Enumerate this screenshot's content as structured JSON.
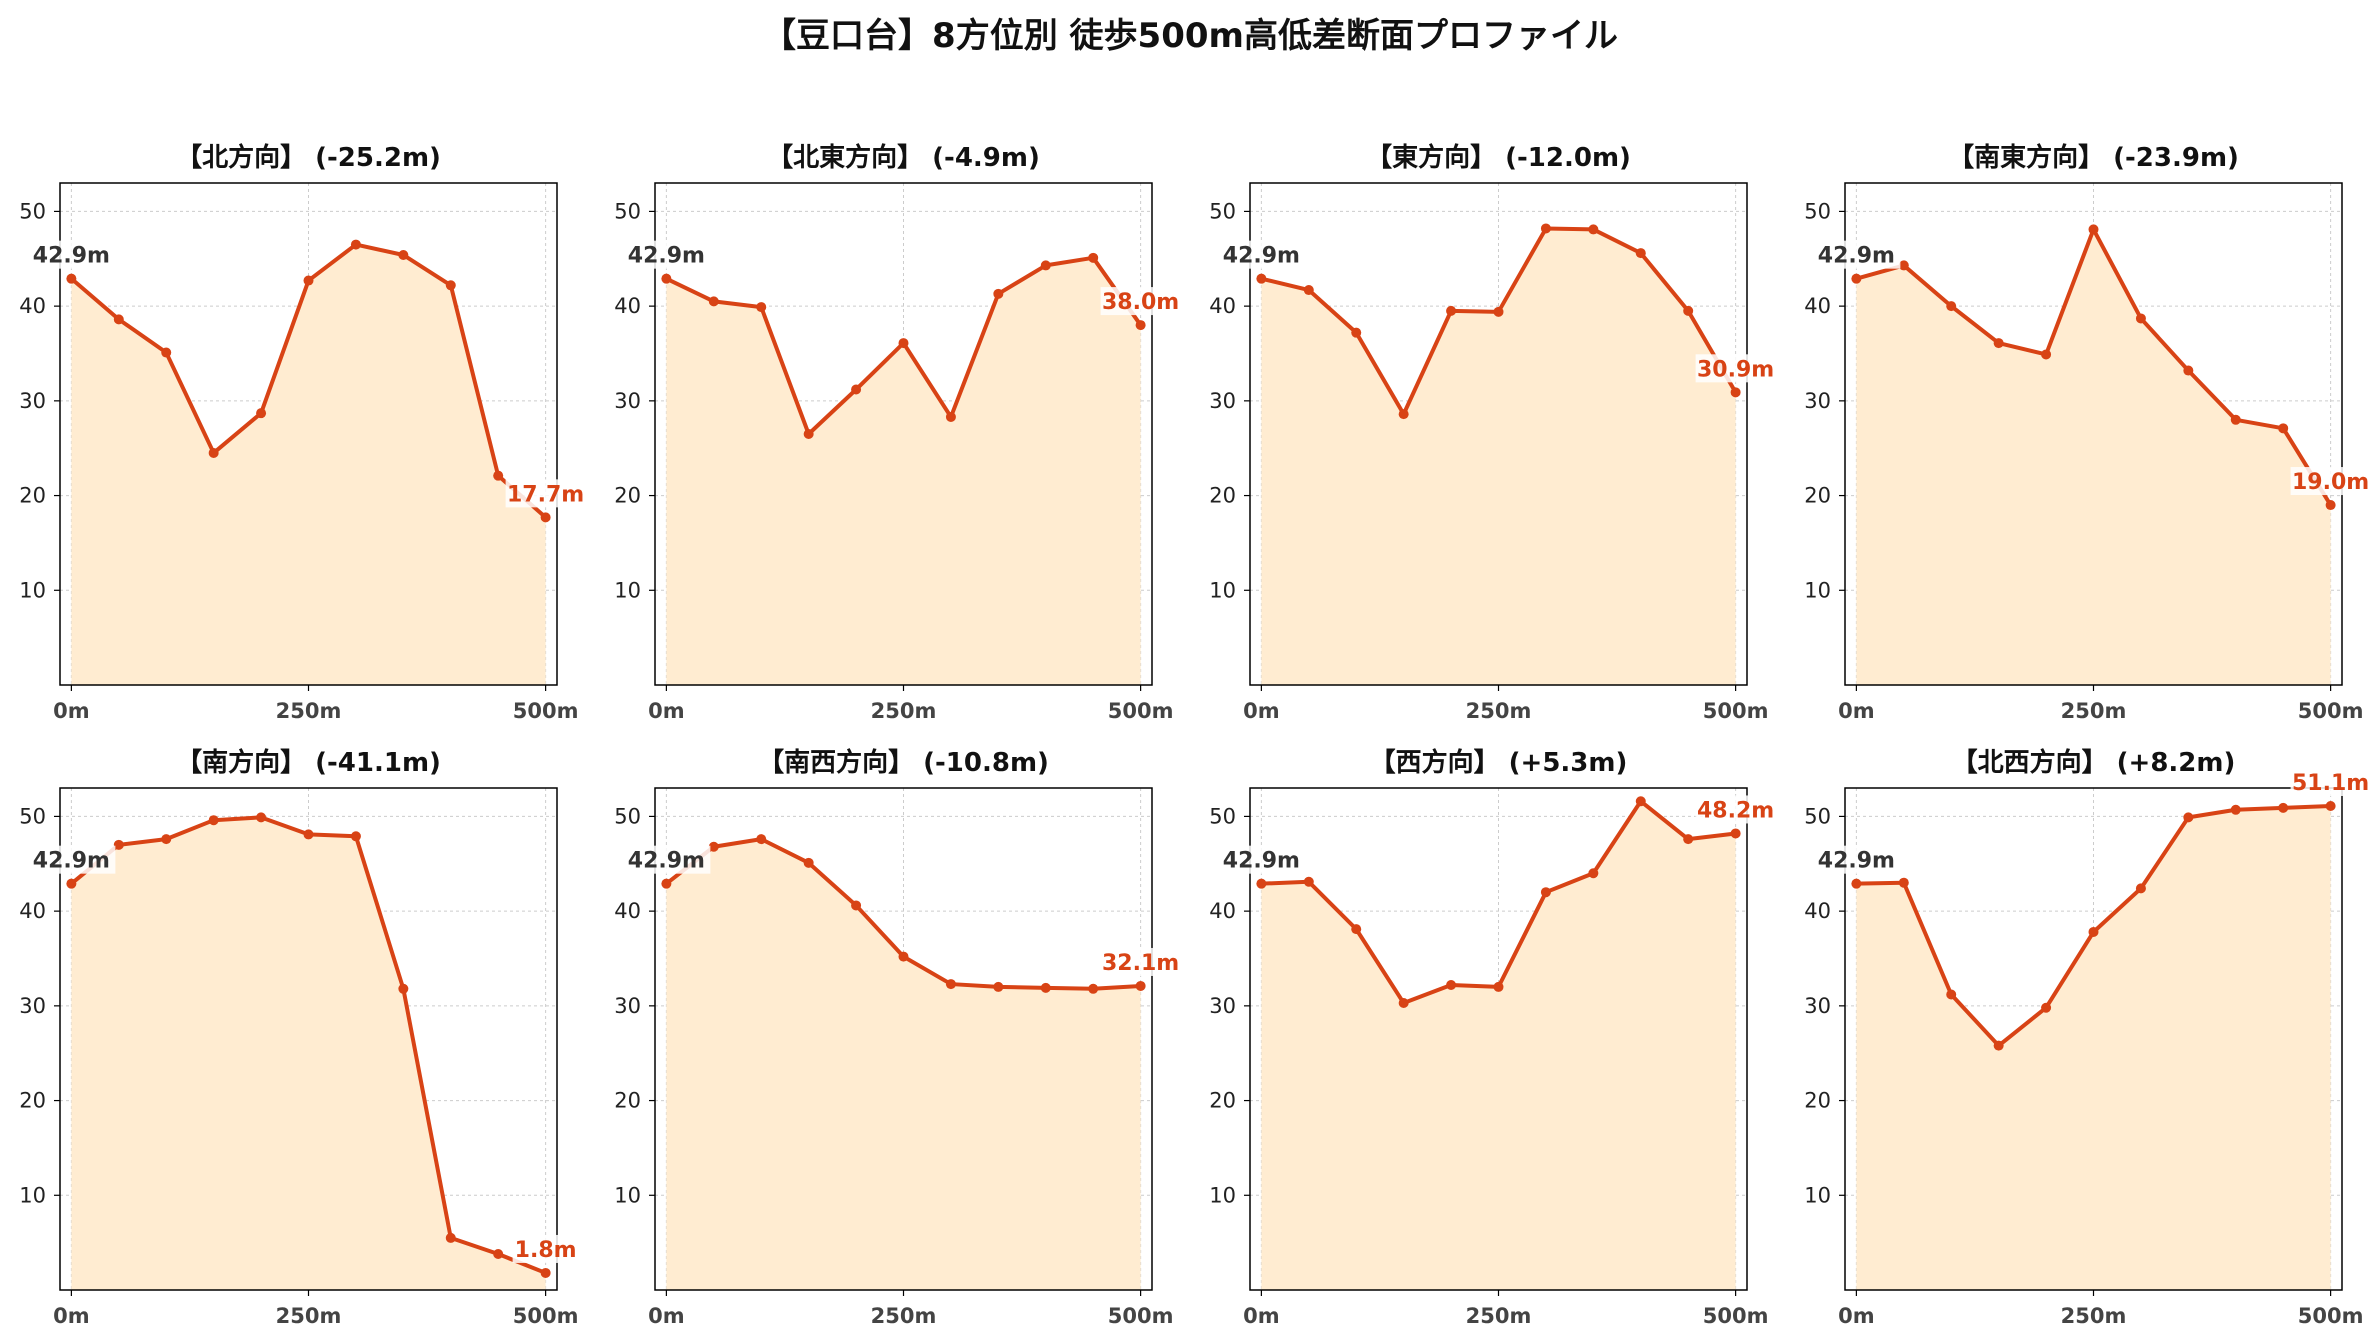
{
  "figure": {
    "title": "【豆口台】8方位別 徒歩500m高低差断面プロファイル",
    "colors": {
      "line": "#d84315",
      "fill": "#ffecd1",
      "grid": "#cccccc",
      "start_label": "#333333",
      "end_label": "#d84315"
    }
  },
  "chart_data": [
    {
      "type": "area",
      "title": "【北方向】 (-25.2m)",
      "x": [
        0,
        50,
        100,
        150,
        200,
        250,
        300,
        350,
        400,
        450,
        500
      ],
      "xticks": [
        "0m",
        "250m",
        "500m"
      ],
      "xtick_values": [
        0,
        250,
        500
      ],
      "yticks": [
        10,
        20,
        30,
        40,
        50
      ],
      "ylim": [
        0,
        53
      ],
      "xlim": [
        -12,
        512
      ],
      "grid": true,
      "values": [
        42.9,
        38.6,
        35.1,
        24.5,
        28.7,
        42.7,
        46.5,
        45.4,
        42.2,
        22.1,
        17.7
      ],
      "start_label": "42.9m",
      "end_label": "17.7m"
    },
    {
      "type": "area",
      "title": "【北東方向】 (-4.9m)",
      "x": [
        0,
        50,
        100,
        150,
        200,
        250,
        300,
        350,
        400,
        450,
        500
      ],
      "xticks": [
        "0m",
        "250m",
        "500m"
      ],
      "xtick_values": [
        0,
        250,
        500
      ],
      "yticks": [
        10,
        20,
        30,
        40,
        50
      ],
      "ylim": [
        0,
        53
      ],
      "xlim": [
        -12,
        512
      ],
      "grid": true,
      "values": [
        42.9,
        40.5,
        39.9,
        26.5,
        31.2,
        36.1,
        28.3,
        41.3,
        44.3,
        45.1,
        38.0
      ],
      "start_label": "42.9m",
      "end_label": "38.0m"
    },
    {
      "type": "area",
      "title": "【東方向】 (-12.0m)",
      "x": [
        0,
        50,
        100,
        150,
        200,
        250,
        300,
        350,
        400,
        450,
        500
      ],
      "xticks": [
        "0m",
        "250m",
        "500m"
      ],
      "xtick_values": [
        0,
        250,
        500
      ],
      "yticks": [
        10,
        20,
        30,
        40,
        50
      ],
      "ylim": [
        0,
        53
      ],
      "xlim": [
        -12,
        512
      ],
      "grid": true,
      "values": [
        42.9,
        41.7,
        37.2,
        28.6,
        39.5,
        39.4,
        48.2,
        48.1,
        45.6,
        39.5,
        30.9
      ],
      "start_label": "42.9m",
      "end_label": "30.9m"
    },
    {
      "type": "area",
      "title": "【南東方向】 (-23.9m)",
      "x": [
        0,
        50,
        100,
        150,
        200,
        250,
        300,
        350,
        400,
        450,
        500
      ],
      "xticks": [
        "0m",
        "250m",
        "500m"
      ],
      "xtick_values": [
        0,
        250,
        500
      ],
      "yticks": [
        10,
        20,
        30,
        40,
        50
      ],
      "ylim": [
        0,
        53
      ],
      "xlim": [
        -12,
        512
      ],
      "grid": true,
      "values": [
        42.9,
        44.3,
        40.0,
        36.1,
        34.9,
        48.1,
        38.7,
        33.2,
        28.0,
        27.1,
        19.0
      ],
      "start_label": "42.9m",
      "end_label": "19.0m"
    },
    {
      "type": "area",
      "title": "【南方向】 (-41.1m)",
      "x": [
        0,
        50,
        100,
        150,
        200,
        250,
        300,
        350,
        400,
        450,
        500
      ],
      "xticks": [
        "0m",
        "250m",
        "500m"
      ],
      "xtick_values": [
        0,
        250,
        500
      ],
      "yticks": [
        10,
        20,
        30,
        40,
        50
      ],
      "ylim": [
        0,
        53
      ],
      "xlim": [
        -12,
        512
      ],
      "grid": true,
      "values": [
        42.9,
        47.0,
        47.6,
        49.6,
        49.9,
        48.1,
        47.9,
        31.8,
        5.5,
        3.8,
        1.8
      ],
      "start_label": "42.9m",
      "end_label": "1.8m"
    },
    {
      "type": "area",
      "title": "【南西方向】 (-10.8m)",
      "x": [
        0,
        50,
        100,
        150,
        200,
        250,
        300,
        350,
        400,
        450,
        500
      ],
      "xticks": [
        "0m",
        "250m",
        "500m"
      ],
      "xtick_values": [
        0,
        250,
        500
      ],
      "yticks": [
        10,
        20,
        30,
        40,
        50
      ],
      "ylim": [
        0,
        53
      ],
      "xlim": [
        -12,
        512
      ],
      "grid": true,
      "values": [
        42.9,
        46.8,
        47.6,
        45.1,
        40.6,
        35.2,
        32.3,
        32.0,
        31.9,
        31.8,
        32.1
      ],
      "start_label": "42.9m",
      "end_label": "32.1m"
    },
    {
      "type": "area",
      "title": "【西方向】 (+5.3m)",
      "x": [
        0,
        50,
        100,
        150,
        200,
        250,
        300,
        350,
        400,
        450,
        500
      ],
      "xticks": [
        "0m",
        "250m",
        "500m"
      ],
      "xtick_values": [
        0,
        250,
        500
      ],
      "yticks": [
        10,
        20,
        30,
        40,
        50
      ],
      "ylim": [
        0,
        53
      ],
      "xlim": [
        -12,
        512
      ],
      "grid": true,
      "values": [
        42.9,
        43.1,
        38.1,
        30.3,
        32.2,
        32.0,
        42.0,
        44.0,
        51.6,
        47.6,
        48.2
      ],
      "start_label": "42.9m",
      "end_label": "48.2m"
    },
    {
      "type": "area",
      "title": "【北西方向】 (+8.2m)",
      "x": [
        0,
        50,
        100,
        150,
        200,
        250,
        300,
        350,
        400,
        450,
        500
      ],
      "xticks": [
        "0m",
        "250m",
        "500m"
      ],
      "xtick_values": [
        0,
        250,
        500
      ],
      "yticks": [
        10,
        20,
        30,
        40,
        50
      ],
      "ylim": [
        0,
        53
      ],
      "xlim": [
        -12,
        512
      ],
      "grid": true,
      "values": [
        42.9,
        43.0,
        31.2,
        25.8,
        29.8,
        37.8,
        42.4,
        49.9,
        50.7,
        50.9,
        51.1
      ],
      "start_label": "42.9m",
      "end_label": "51.1m"
    }
  ]
}
